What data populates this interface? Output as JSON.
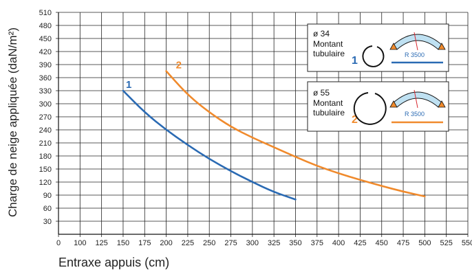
{
  "chart_data": {
    "type": "line",
    "xlabel": "Entraxe appuis  (cm)",
    "ylabel": "Charge de neige appliquée  (daN/m²)",
    "xlim": [
      0,
      550
    ],
    "ylim": [
      0,
      510
    ],
    "x_ticks": [
      "0",
      "100",
      "125",
      "150",
      "175",
      "200",
      "225",
      "250",
      "275",
      "300",
      "325",
      "350",
      "375",
      "400",
      "425",
      "450",
      "475",
      "500",
      "525",
      "550"
    ],
    "y_ticks": [
      "30",
      "60",
      "90",
      "120",
      "150",
      "180",
      "210",
      "240",
      "270",
      "300",
      "330",
      "360",
      "390",
      "420",
      "450",
      "480",
      "510"
    ],
    "grid": true,
    "series": [
      {
        "name": "1",
        "color": "#2a6ab3",
        "points": [
          [
            150,
            330
          ],
          [
            175,
            280
          ],
          [
            200,
            240
          ],
          [
            225,
            205
          ],
          [
            250,
            173
          ],
          [
            275,
            145
          ],
          [
            300,
            120
          ],
          [
            325,
            97
          ],
          [
            350,
            80
          ]
        ]
      },
      {
        "name": "2",
        "color": "#f08a2c",
        "points": [
          [
            200,
            375
          ],
          [
            225,
            320
          ],
          [
            250,
            280
          ],
          [
            275,
            247
          ],
          [
            300,
            222
          ],
          [
            325,
            200
          ],
          [
            350,
            178
          ],
          [
            375,
            157
          ],
          [
            400,
            140
          ],
          [
            425,
            125
          ],
          [
            450,
            111
          ],
          [
            475,
            98
          ],
          [
            500,
            87
          ]
        ]
      }
    ],
    "legend": [
      {
        "diameter": "ø 34",
        "line1": "Montant",
        "line2": "tubulaire",
        "number": "1",
        "radius_label": "R 3500",
        "color": "#2a6ab3"
      },
      {
        "diameter": "ø 55",
        "line1": "Montant",
        "line2": "tubulaire",
        "number": "2",
        "radius_label": "R 3500",
        "color": "#f08a2c"
      }
    ],
    "legend_position": "top-right"
  }
}
